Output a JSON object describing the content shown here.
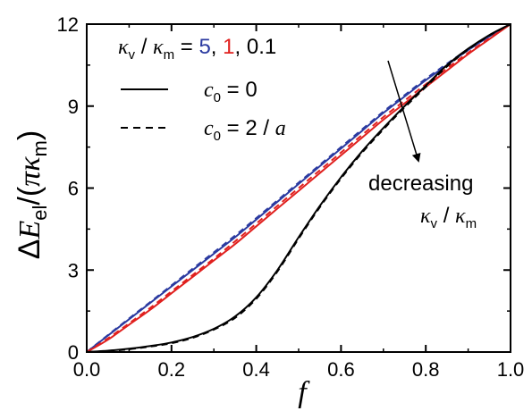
{
  "chart_data": {
    "type": "line",
    "xlabel": "f",
    "ylabel": {
      "delta": "Δ",
      "E": "E",
      "E_sub": "el",
      "paren_open": "/(",
      "pi": "π",
      "kappa": "κ",
      "kappa_sub": "m",
      "paren_close": ")"
    },
    "xlim": [
      0.0,
      1.0
    ],
    "ylim": [
      0,
      12
    ],
    "x_ticks": [
      "0.0",
      "0.2",
      "0.4",
      "0.6",
      "0.8",
      "1.0"
    ],
    "y_ticks": [
      "0",
      "3",
      "6",
      "9",
      "12"
    ],
    "legend": {
      "ratio_label": {
        "kv": "κ",
        "kv_sub": "v",
        "slash": " / ",
        "km": "κ",
        "km_sub": "m",
        "eq": " = ",
        "v1": "5",
        "c1": ", ",
        "v2": "1",
        "c2": ", ",
        "v3": "0.1"
      },
      "solid": {
        "c": "c",
        "c_sub": "0",
        "rest": " = 0"
      },
      "dashed": {
        "c": "c",
        "c_sub": "0",
        "rest": " = 2 / ",
        "a": "a"
      }
    },
    "annotation": {
      "line1": "decreasing",
      "kv": "κ",
      "kv_sub": "v",
      "slash": " / ",
      "km": "κ",
      "km_sub": "m"
    },
    "x": [
      0.0,
      0.05,
      0.1,
      0.15,
      0.2,
      0.25,
      0.3,
      0.35,
      0.4,
      0.45,
      0.5,
      0.55,
      0.6,
      0.65,
      0.7,
      0.75,
      0.8,
      0.85,
      0.9,
      0.95,
      1.0
    ],
    "series": [
      {
        "color": "#2b3aa0",
        "style": "solid",
        "values": [
          0.0,
          0.6,
          1.2,
          1.8,
          2.4,
          3.0,
          3.6,
          4.2,
          4.85,
          5.5,
          6.15,
          6.8,
          7.45,
          8.1,
          8.75,
          9.35,
          9.95,
          10.5,
          11.05,
          11.55,
          12.0
        ]
      },
      {
        "color": "#2b3aa0",
        "style": "dashed",
        "values": [
          0.0,
          0.62,
          1.23,
          1.83,
          2.44,
          3.05,
          3.65,
          4.26,
          4.9,
          5.55,
          6.2,
          6.85,
          7.5,
          8.15,
          8.8,
          9.4,
          10.0,
          10.55,
          11.08,
          11.57,
          12.0
        ]
      },
      {
        "color": "#e0201e",
        "style": "solid",
        "values": [
          0.0,
          0.45,
          1.0,
          1.55,
          2.15,
          2.75,
          3.35,
          3.95,
          4.6,
          5.25,
          5.9,
          6.55,
          7.2,
          7.85,
          8.5,
          9.1,
          9.7,
          10.3,
          10.9,
          11.45,
          12.0
        ]
      },
      {
        "color": "#e0201e",
        "style": "dashed",
        "values": [
          0.0,
          0.5,
          1.05,
          1.62,
          2.22,
          2.82,
          3.42,
          4.05,
          4.7,
          5.35,
          6.0,
          6.65,
          7.3,
          7.95,
          8.6,
          9.2,
          9.8,
          10.38,
          10.95,
          11.48,
          12.0
        ]
      },
      {
        "color": "#000000",
        "style": "solid",
        "values": [
          0.0,
          0.05,
          0.12,
          0.22,
          0.35,
          0.55,
          0.85,
          1.3,
          2.0,
          3.0,
          4.2,
          5.35,
          6.4,
          7.35,
          8.2,
          9.0,
          9.75,
          10.5,
          11.1,
          11.6,
          12.0
        ]
      },
      {
        "color": "#000000",
        "style": "dashed",
        "values": [
          0.0,
          0.04,
          0.1,
          0.2,
          0.32,
          0.52,
          0.82,
          1.25,
          1.95,
          2.95,
          4.15,
          5.3,
          6.35,
          7.3,
          8.15,
          8.95,
          9.7,
          10.45,
          11.07,
          11.58,
          12.0
        ]
      }
    ]
  }
}
